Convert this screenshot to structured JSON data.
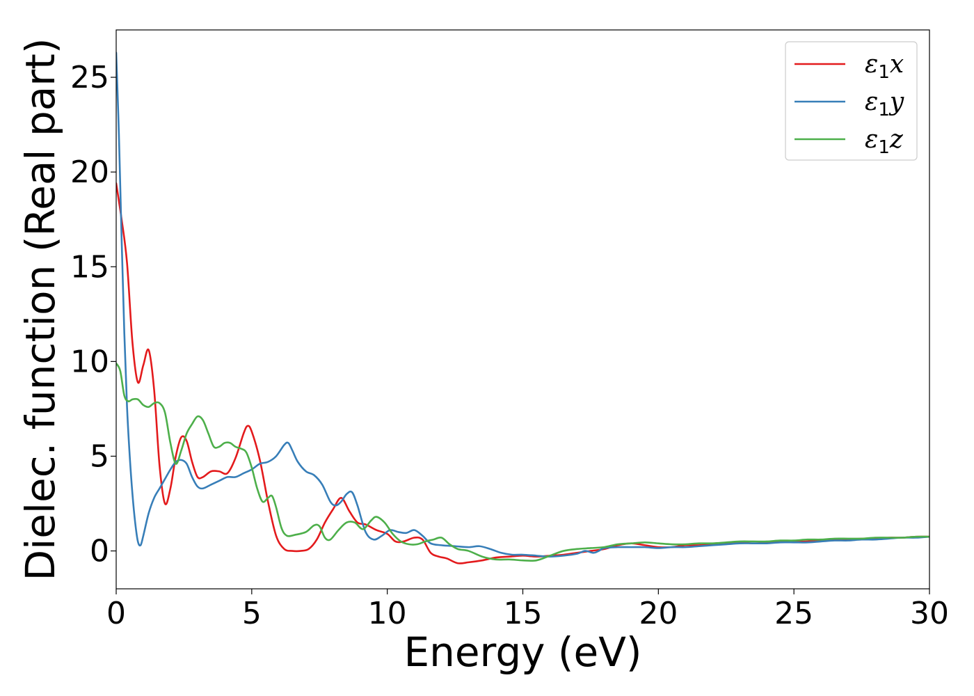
{
  "chart_data": {
    "type": "line",
    "title": "",
    "xlabel": "Energy (eV)",
    "ylabel": "Dielec. function (Real part)",
    "xlim": [
      0,
      30
    ],
    "ylim": [
      -2,
      27.5
    ],
    "xticks": [
      "0",
      "5",
      "10",
      "15",
      "20",
      "25",
      "30"
    ],
    "yticks": [
      "0",
      "5",
      "10",
      "15",
      "20",
      "25"
    ],
    "grid": false,
    "legend_position": "top-right",
    "series": [
      {
        "name": "ε1x",
        "legend_base": "ε",
        "legend_sub": "1",
        "legend_var": "x",
        "color": "#e31a1c",
        "points": [
          [
            0,
            19.4
          ],
          [
            0.2,
            17.5
          ],
          [
            0.4,
            15.2
          ],
          [
            0.6,
            11.0
          ],
          [
            0.8,
            8.9
          ],
          [
            1.0,
            9.8
          ],
          [
            1.2,
            10.6
          ],
          [
            1.4,
            8.5
          ],
          [
            1.6,
            4.5
          ],
          [
            1.8,
            2.5
          ],
          [
            2.0,
            3.3
          ],
          [
            2.2,
            5.0
          ],
          [
            2.4,
            6.0
          ],
          [
            2.6,
            5.8
          ],
          [
            2.8,
            4.7
          ],
          [
            3.0,
            3.9
          ],
          [
            3.2,
            3.9
          ],
          [
            3.5,
            4.2
          ],
          [
            3.8,
            4.2
          ],
          [
            4.1,
            4.1
          ],
          [
            4.4,
            4.9
          ],
          [
            4.7,
            6.2
          ],
          [
            4.85,
            6.6
          ],
          [
            5.0,
            6.3
          ],
          [
            5.3,
            4.8
          ],
          [
            5.6,
            2.6
          ],
          [
            5.9,
            0.8
          ],
          [
            6.2,
            0.1
          ],
          [
            6.5,
            0.0
          ],
          [
            6.8,
            0.0
          ],
          [
            7.1,
            0.1
          ],
          [
            7.4,
            0.6
          ],
          [
            7.7,
            1.5
          ],
          [
            8.0,
            2.2
          ],
          [
            8.3,
            2.8
          ],
          [
            8.6,
            2.1
          ],
          [
            8.9,
            1.5
          ],
          [
            9.2,
            1.4
          ],
          [
            9.6,
            1.1
          ],
          [
            10.0,
            0.9
          ],
          [
            10.3,
            0.5
          ],
          [
            10.6,
            0.5
          ],
          [
            11.0,
            0.7
          ],
          [
            11.3,
            0.6
          ],
          [
            11.6,
            -0.1
          ],
          [
            11.9,
            -0.3
          ],
          [
            12.2,
            -0.4
          ],
          [
            12.6,
            -0.65
          ],
          [
            13.0,
            -0.6
          ],
          [
            13.5,
            -0.5
          ],
          [
            14.0,
            -0.35
          ],
          [
            14.5,
            -0.3
          ],
          [
            15.0,
            -0.25
          ],
          [
            15.5,
            -0.3
          ],
          [
            16.0,
            -0.25
          ],
          [
            16.5,
            -0.2
          ],
          [
            17.0,
            -0.1
          ],
          [
            17.5,
            0.0
          ],
          [
            18.0,
            0.1
          ],
          [
            18.5,
            0.3
          ],
          [
            19.0,
            0.4
          ],
          [
            19.5,
            0.3
          ],
          [
            20.0,
            0.2
          ],
          [
            20.5,
            0.2
          ],
          [
            21.0,
            0.3
          ],
          [
            21.5,
            0.3
          ],
          [
            22.0,
            0.35
          ],
          [
            22.5,
            0.4
          ],
          [
            23.0,
            0.45
          ],
          [
            23.5,
            0.4
          ],
          [
            24.0,
            0.45
          ],
          [
            24.5,
            0.5
          ],
          [
            25.0,
            0.5
          ],
          [
            25.5,
            0.5
          ],
          [
            26.0,
            0.55
          ],
          [
            26.5,
            0.6
          ],
          [
            27.0,
            0.6
          ],
          [
            27.5,
            0.65
          ],
          [
            28.0,
            0.65
          ],
          [
            28.5,
            0.7
          ],
          [
            29.0,
            0.7
          ],
          [
            29.5,
            0.75
          ],
          [
            30.0,
            0.75
          ]
        ]
      },
      {
        "name": "ε1y",
        "legend_base": "ε",
        "legend_sub": "1",
        "legend_var": "y",
        "color": "#377eb8",
        "points": [
          [
            0,
            26.3
          ],
          [
            0.1,
            22.0
          ],
          [
            0.2,
            16.5
          ],
          [
            0.3,
            11.5
          ],
          [
            0.4,
            7.6
          ],
          [
            0.5,
            5.0
          ],
          [
            0.6,
            3.0
          ],
          [
            0.7,
            1.5
          ],
          [
            0.8,
            0.5
          ],
          [
            0.9,
            0.3
          ],
          [
            1.0,
            0.8
          ],
          [
            1.2,
            2.0
          ],
          [
            1.4,
            2.8
          ],
          [
            1.6,
            3.3
          ],
          [
            1.8,
            3.8
          ],
          [
            2.0,
            4.3
          ],
          [
            2.2,
            4.7
          ],
          [
            2.4,
            4.8
          ],
          [
            2.6,
            4.6
          ],
          [
            2.8,
            3.9
          ],
          [
            3.0,
            3.4
          ],
          [
            3.2,
            3.3
          ],
          [
            3.5,
            3.5
          ],
          [
            3.8,
            3.7
          ],
          [
            4.1,
            3.9
          ],
          [
            4.4,
            3.9
          ],
          [
            4.7,
            4.1
          ],
          [
            5.0,
            4.3
          ],
          [
            5.3,
            4.6
          ],
          [
            5.6,
            4.7
          ],
          [
            5.9,
            5.0
          ],
          [
            6.2,
            5.6
          ],
          [
            6.35,
            5.7
          ],
          [
            6.5,
            5.3
          ],
          [
            6.7,
            4.7
          ],
          [
            7.0,
            4.2
          ],
          [
            7.3,
            4.0
          ],
          [
            7.6,
            3.5
          ],
          [
            7.9,
            2.6
          ],
          [
            8.1,
            2.4
          ],
          [
            8.3,
            2.6
          ],
          [
            8.5,
            3.0
          ],
          [
            8.7,
            3.1
          ],
          [
            8.9,
            2.4
          ],
          [
            9.2,
            1.0
          ],
          [
            9.5,
            0.6
          ],
          [
            9.8,
            0.8
          ],
          [
            10.1,
            1.1
          ],
          [
            10.4,
            1.0
          ],
          [
            10.7,
            0.95
          ],
          [
            11.0,
            1.1
          ],
          [
            11.3,
            0.8
          ],
          [
            11.6,
            0.4
          ],
          [
            12.0,
            0.3
          ],
          [
            12.5,
            0.25
          ],
          [
            13.0,
            0.2
          ],
          [
            13.4,
            0.25
          ],
          [
            13.8,
            0.1
          ],
          [
            14.2,
            -0.1
          ],
          [
            14.6,
            -0.2
          ],
          [
            15.0,
            -0.2
          ],
          [
            15.5,
            -0.25
          ],
          [
            16.0,
            -0.3
          ],
          [
            16.5,
            -0.25
          ],
          [
            17.0,
            -0.15
          ],
          [
            17.3,
            0.0
          ],
          [
            17.6,
            -0.1
          ],
          [
            17.8,
            0.0
          ],
          [
            18.0,
            0.15
          ],
          [
            18.5,
            0.2
          ],
          [
            19.0,
            0.2
          ],
          [
            19.5,
            0.2
          ],
          [
            20.0,
            0.15
          ],
          [
            20.5,
            0.2
          ],
          [
            21.0,
            0.2
          ],
          [
            21.5,
            0.25
          ],
          [
            22.0,
            0.3
          ],
          [
            22.5,
            0.35
          ],
          [
            23.0,
            0.4
          ],
          [
            23.5,
            0.4
          ],
          [
            24.0,
            0.4
          ],
          [
            24.5,
            0.45
          ],
          [
            25.0,
            0.45
          ],
          [
            25.5,
            0.45
          ],
          [
            26.0,
            0.5
          ],
          [
            26.5,
            0.55
          ],
          [
            27.0,
            0.55
          ],
          [
            27.5,
            0.6
          ],
          [
            28.0,
            0.6
          ],
          [
            28.5,
            0.65
          ],
          [
            29.0,
            0.7
          ],
          [
            29.5,
            0.7
          ],
          [
            30.0,
            0.75
          ]
        ]
      },
      {
        "name": "ε1z",
        "legend_base": "ε",
        "legend_sub": "1",
        "legend_var": "z",
        "color": "#4daf4a",
        "points": [
          [
            0,
            9.9
          ],
          [
            0.15,
            9.5
          ],
          [
            0.3,
            8.2
          ],
          [
            0.45,
            7.9
          ],
          [
            0.6,
            8.0
          ],
          [
            0.8,
            8.0
          ],
          [
            1.0,
            7.7
          ],
          [
            1.2,
            7.6
          ],
          [
            1.4,
            7.8
          ],
          [
            1.6,
            7.8
          ],
          [
            1.8,
            7.3
          ],
          [
            2.0,
            5.7
          ],
          [
            2.2,
            4.6
          ],
          [
            2.4,
            5.3
          ],
          [
            2.6,
            6.2
          ],
          [
            2.8,
            6.7
          ],
          [
            3.0,
            7.1
          ],
          [
            3.2,
            6.9
          ],
          [
            3.4,
            6.2
          ],
          [
            3.6,
            5.5
          ],
          [
            3.8,
            5.5
          ],
          [
            4.0,
            5.7
          ],
          [
            4.2,
            5.7
          ],
          [
            4.4,
            5.5
          ],
          [
            4.6,
            5.4
          ],
          [
            4.8,
            5.2
          ],
          [
            5.0,
            4.4
          ],
          [
            5.2,
            3.3
          ],
          [
            5.4,
            2.6
          ],
          [
            5.6,
            2.8
          ],
          [
            5.75,
            2.9
          ],
          [
            5.9,
            2.3
          ],
          [
            6.1,
            1.2
          ],
          [
            6.3,
            0.8
          ],
          [
            6.6,
            0.85
          ],
          [
            7.0,
            1.0
          ],
          [
            7.3,
            1.35
          ],
          [
            7.5,
            1.3
          ],
          [
            7.7,
            0.7
          ],
          [
            7.9,
            0.6
          ],
          [
            8.2,
            1.1
          ],
          [
            8.5,
            1.5
          ],
          [
            8.8,
            1.5
          ],
          [
            9.1,
            1.15
          ],
          [
            9.4,
            1.6
          ],
          [
            9.6,
            1.8
          ],
          [
            9.9,
            1.5
          ],
          [
            10.2,
            0.9
          ],
          [
            10.5,
            0.5
          ],
          [
            10.8,
            0.35
          ],
          [
            11.1,
            0.35
          ],
          [
            11.4,
            0.5
          ],
          [
            11.7,
            0.6
          ],
          [
            12.0,
            0.7
          ],
          [
            12.3,
            0.35
          ],
          [
            12.6,
            0.1
          ],
          [
            13.0,
            0.0
          ],
          [
            13.5,
            -0.3
          ],
          [
            14.0,
            -0.45
          ],
          [
            14.5,
            -0.45
          ],
          [
            15.0,
            -0.5
          ],
          [
            15.5,
            -0.5
          ],
          [
            16.0,
            -0.25
          ],
          [
            16.5,
            0.0
          ],
          [
            17.0,
            0.1
          ],
          [
            17.5,
            0.15
          ],
          [
            18.0,
            0.2
          ],
          [
            18.5,
            0.35
          ],
          [
            19.0,
            0.4
          ],
          [
            19.5,
            0.45
          ],
          [
            20.0,
            0.4
          ],
          [
            20.5,
            0.35
          ],
          [
            21.0,
            0.35
          ],
          [
            21.5,
            0.4
          ],
          [
            22.0,
            0.4
          ],
          [
            22.5,
            0.45
          ],
          [
            23.0,
            0.5
          ],
          [
            23.5,
            0.5
          ],
          [
            24.0,
            0.5
          ],
          [
            24.5,
            0.55
          ],
          [
            25.0,
            0.55
          ],
          [
            25.5,
            0.6
          ],
          [
            26.0,
            0.6
          ],
          [
            26.5,
            0.65
          ],
          [
            27.0,
            0.65
          ],
          [
            27.5,
            0.65
          ],
          [
            28.0,
            0.7
          ],
          [
            28.5,
            0.7
          ],
          [
            29.0,
            0.7
          ],
          [
            29.5,
            0.75
          ],
          [
            30.0,
            0.75
          ]
        ]
      }
    ]
  }
}
